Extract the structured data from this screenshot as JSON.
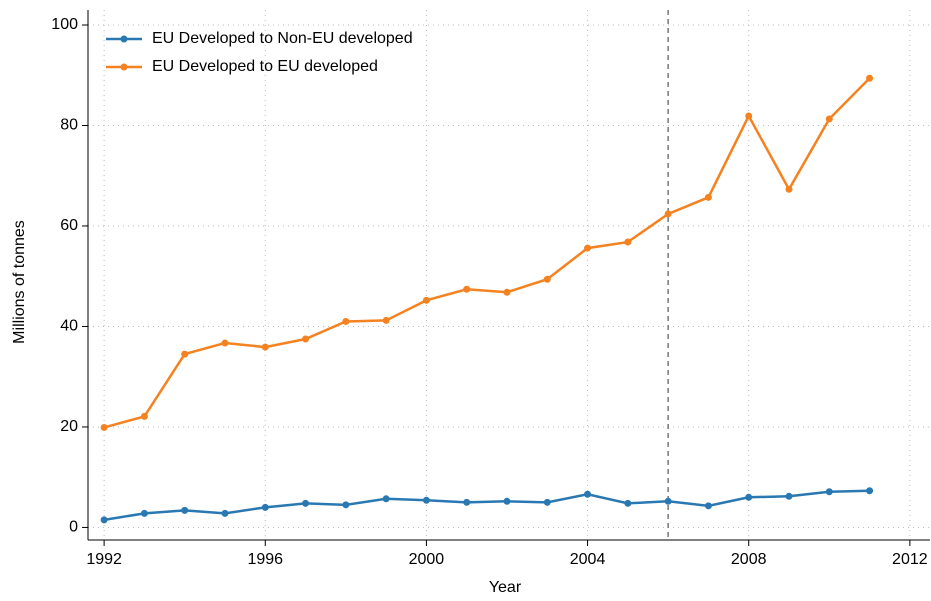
{
  "chart_data": {
    "type": "line",
    "x_label": "Year",
    "y_label": "Millions of tonnes",
    "x": [
      1992,
      1993,
      1994,
      1995,
      1996,
      1997,
      1998,
      1999,
      2000,
      2001,
      2002,
      2003,
      2004,
      2005,
      2006,
      2007,
      2008,
      2009,
      2010,
      2011
    ],
    "series": [
      {
        "name": "EU Developed to Non-EU developed",
        "color": "#2a78b2",
        "values": [
          1.5,
          2.8,
          3.4,
          2.8,
          4.0,
          4.8,
          4.5,
          5.7,
          5.4,
          5.0,
          5.2,
          5.0,
          6.6,
          4.8,
          5.2,
          4.3,
          6.0,
          6.2,
          7.1,
          7.3
        ]
      },
      {
        "name": "EU Developed to EU developed",
        "color": "#f58220",
        "values": [
          19.9,
          22.1,
          34.5,
          36.7,
          35.9,
          37.5,
          41.0,
          41.2,
          45.2,
          47.4,
          46.8,
          49.4,
          55.6,
          56.8,
          62.4,
          65.7,
          81.9,
          67.3,
          81.3,
          89.4
        ]
      }
    ],
    "xlim": [
      1991.6,
      2012.5
    ],
    "xticks": [
      1992,
      1996,
      2000,
      2004,
      2008,
      2012
    ],
    "ylim": [
      -2.5,
      100
    ],
    "yticks": [
      0,
      20,
      40,
      60,
      80,
      100
    ],
    "grid": true,
    "vline": 2006,
    "legend": "upper left"
  }
}
